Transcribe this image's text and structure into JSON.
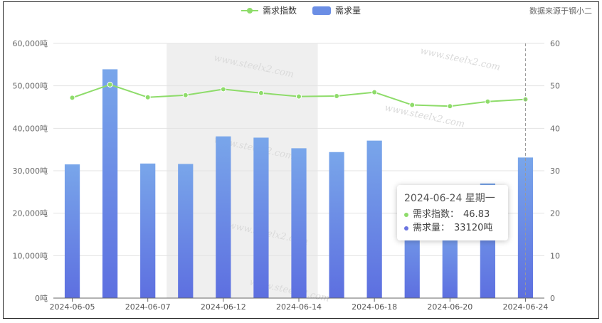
{
  "legend": {
    "line_label": "需求指数",
    "bar_label": "需求量",
    "line_color": "#8edc6a",
    "bar_color": "#6b8ee5"
  },
  "source": "数据来源于钢小二",
  "watermark": "www.steelx2.com",
  "tooltip": {
    "title": "2024-06-24 星期一",
    "index_label": "需求指数：",
    "index_value": "46.83",
    "demand_label": "需求量：",
    "demand_value": "33120吨",
    "index_color": "#8edc6a",
    "demand_color": "#6b74e0"
  },
  "chart_data": {
    "type": "bar",
    "categories": [
      "2024-06-05",
      "2024-06-06",
      "2024-06-07",
      "2024-06-11",
      "2024-06-12",
      "2024-06-13",
      "2024-06-14",
      "2024-06-17",
      "2024-06-18",
      "2024-06-19",
      "2024-06-20",
      "2024-06-21",
      "2024-06-24"
    ],
    "x_tick_labels": [
      "2024-06-05",
      "2024-06-07",
      "2024-06-12",
      "2024-06-14",
      "2024-06-18",
      "2024-06-20",
      "2024-06-24"
    ],
    "series": [
      {
        "name": "需求量",
        "type": "bar",
        "axis": "left",
        "values": [
          31500,
          53900,
          31700,
          31600,
          38100,
          37800,
          35300,
          34400,
          37100,
          21000,
          18000,
          27000,
          33120
        ]
      },
      {
        "name": "需求指数",
        "type": "line",
        "axis": "right",
        "values": [
          47.2,
          50.3,
          47.3,
          47.8,
          49.2,
          48.3,
          47.5,
          47.6,
          48.5,
          45.5,
          45.2,
          46.3,
          46.83
        ]
      }
    ],
    "y_left_ticks": [
      "0吨",
      "10,000吨",
      "20,000吨",
      "30,000吨",
      "40,000吨",
      "50,000吨",
      "60,000吨"
    ],
    "y_left_range": [
      0,
      60000
    ],
    "y_right_ticks": [
      "0",
      "10",
      "20",
      "30",
      "40",
      "50",
      "60"
    ],
    "y_right_range": [
      0,
      60
    ],
    "highlight_range": [
      "2024-06-11",
      "2024-06-14"
    ],
    "grid": true,
    "legend_position": "top-center"
  }
}
